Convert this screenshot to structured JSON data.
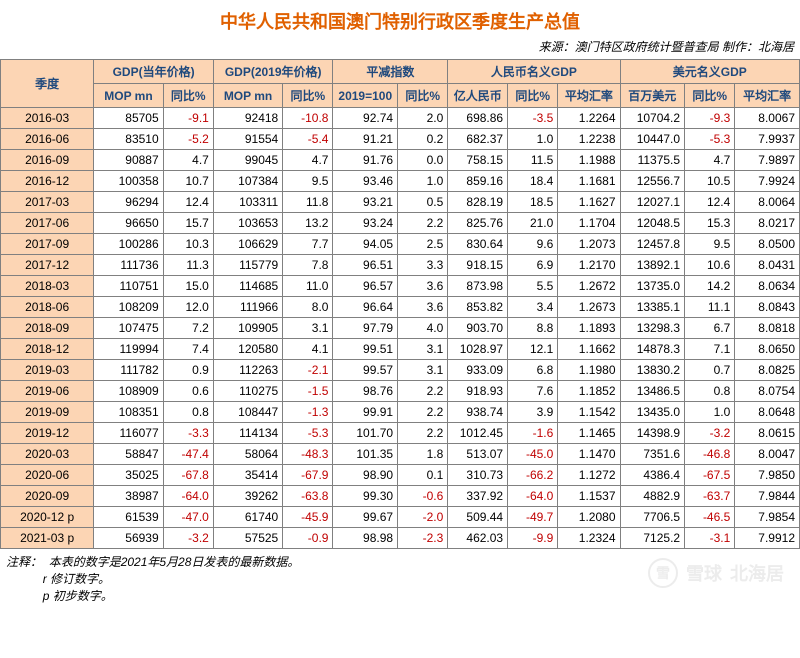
{
  "title": "中华人民共和国澳门特别行政区季度生产总值",
  "title_color": "#e06000",
  "title_fontsize": 18,
  "source": "来源：澳门特区政府统计暨普查局  制作：北海居",
  "source_fontsize": 12,
  "border_color": "#808080",
  "header_bg": "#fcd5b4",
  "header_text_color": "#1f497d",
  "header_fontsize": 12,
  "body_fontsize": 12,
  "body_text_color": "#000000",
  "negative_color": "#c00000",
  "period_bg": "#fcd5b4",
  "col_widths": [
    "78",
    "58",
    "42",
    "58",
    "42",
    "54",
    "42",
    "50",
    "42",
    "52",
    "54",
    "42",
    "54"
  ],
  "groups": [
    {
      "label": "季度",
      "span": 1,
      "rowspan": 2
    },
    {
      "label": "GDP(当年价格)",
      "span": 2
    },
    {
      "label": "GDP(2019年价格)",
      "span": 2
    },
    {
      "label": "平减指数",
      "span": 2
    },
    {
      "label": "人民币名义GDP",
      "span": 3
    },
    {
      "label": "美元名义GDP",
      "span": 3
    }
  ],
  "subheaders": [
    "MOP mn",
    "同比%",
    "MOP mn",
    "同比%",
    "2019=100",
    "同比%",
    "亿人民币",
    "同比%",
    "平均汇率",
    "百万美元",
    "同比%",
    "平均汇率"
  ],
  "rows": [
    {
      "p": "2016-03",
      "v": [
        "85705",
        "-9.1",
        "92418",
        "-10.8",
        "92.74",
        "2.0",
        "698.86",
        "-3.5",
        "1.2264",
        "10704.2",
        "-9.3",
        "8.0067"
      ]
    },
    {
      "p": "2016-06",
      "v": [
        "83510",
        "-5.2",
        "91554",
        "-5.4",
        "91.21",
        "0.2",
        "682.37",
        "1.0",
        "1.2238",
        "10447.0",
        "-5.3",
        "7.9937"
      ]
    },
    {
      "p": "2016-09",
      "v": [
        "90887",
        "4.7",
        "99045",
        "4.7",
        "91.76",
        "0.0",
        "758.15",
        "11.5",
        "1.1988",
        "11375.5",
        "4.7",
        "7.9897"
      ]
    },
    {
      "p": "2016-12",
      "v": [
        "100358",
        "10.7",
        "107384",
        "9.5",
        "93.46",
        "1.0",
        "859.16",
        "18.4",
        "1.1681",
        "12556.7",
        "10.5",
        "7.9924"
      ]
    },
    {
      "p": "2017-03",
      "v": [
        "96294",
        "12.4",
        "103311",
        "11.8",
        "93.21",
        "0.5",
        "828.19",
        "18.5",
        "1.1627",
        "12027.1",
        "12.4",
        "8.0064"
      ]
    },
    {
      "p": "2017-06",
      "v": [
        "96650",
        "15.7",
        "103653",
        "13.2",
        "93.24",
        "2.2",
        "825.76",
        "21.0",
        "1.1704",
        "12048.5",
        "15.3",
        "8.0217"
      ]
    },
    {
      "p": "2017-09",
      "v": [
        "100286",
        "10.3",
        "106629",
        "7.7",
        "94.05",
        "2.5",
        "830.64",
        "9.6",
        "1.2073",
        "12457.8",
        "9.5",
        "8.0500"
      ]
    },
    {
      "p": "2017-12",
      "v": [
        "111736",
        "11.3",
        "115779",
        "7.8",
        "96.51",
        "3.3",
        "918.15",
        "6.9",
        "1.2170",
        "13892.1",
        "10.6",
        "8.0431"
      ]
    },
    {
      "p": "2018-03",
      "v": [
        "110751",
        "15.0",
        "114685",
        "11.0",
        "96.57",
        "3.6",
        "873.98",
        "5.5",
        "1.2672",
        "13735.0",
        "14.2",
        "8.0634"
      ]
    },
    {
      "p": "2018-06",
      "v": [
        "108209",
        "12.0",
        "111966",
        "8.0",
        "96.64",
        "3.6",
        "853.82",
        "3.4",
        "1.2673",
        "13385.1",
        "11.1",
        "8.0843"
      ]
    },
    {
      "p": "2018-09",
      "v": [
        "107475",
        "7.2",
        "109905",
        "3.1",
        "97.79",
        "4.0",
        "903.70",
        "8.8",
        "1.1893",
        "13298.3",
        "6.7",
        "8.0818"
      ]
    },
    {
      "p": "2018-12",
      "v": [
        "119994",
        "7.4",
        "120580",
        "4.1",
        "99.51",
        "3.1",
        "1028.97",
        "12.1",
        "1.1662",
        "14878.3",
        "7.1",
        "8.0650"
      ]
    },
    {
      "p": "2019-03",
      "v": [
        "111782",
        "0.9",
        "112263",
        "-2.1",
        "99.57",
        "3.1",
        "933.09",
        "6.8",
        "1.1980",
        "13830.2",
        "0.7",
        "8.0825"
      ]
    },
    {
      "p": "2019-06",
      "v": [
        "108909",
        "0.6",
        "110275",
        "-1.5",
        "98.76",
        "2.2",
        "918.93",
        "7.6",
        "1.1852",
        "13486.5",
        "0.8",
        "8.0754"
      ]
    },
    {
      "p": "2019-09",
      "v": [
        "108351",
        "0.8",
        "108447",
        "-1.3",
        "99.91",
        "2.2",
        "938.74",
        "3.9",
        "1.1542",
        "13435.0",
        "1.0",
        "8.0648"
      ]
    },
    {
      "p": "2019-12",
      "v": [
        "116077",
        "-3.3",
        "114134",
        "-5.3",
        "101.70",
        "2.2",
        "1012.45",
        "-1.6",
        "1.1465",
        "14398.9",
        "-3.2",
        "8.0615"
      ]
    },
    {
      "p": "2020-03",
      "v": [
        "58847",
        "-47.4",
        "58064",
        "-48.3",
        "101.35",
        "1.8",
        "513.07",
        "-45.0",
        "1.1470",
        "7351.6",
        "-46.8",
        "8.0047"
      ]
    },
    {
      "p": "2020-06",
      "v": [
        "35025",
        "-67.8",
        "35414",
        "-67.9",
        "98.90",
        "0.1",
        "310.73",
        "-66.2",
        "1.1272",
        "4386.4",
        "-67.5",
        "7.9850"
      ]
    },
    {
      "p": "2020-09",
      "v": [
        "38987",
        "-64.0",
        "39262",
        "-63.8",
        "99.30",
        "-0.6",
        "337.92",
        "-64.0",
        "1.1537",
        "4882.9",
        "-63.7",
        "7.9844"
      ]
    },
    {
      "p": "2020-12 p",
      "v": [
        "61539",
        "-47.0",
        "61740",
        "-45.9",
        "99.67",
        "-2.0",
        "509.44",
        "-49.7",
        "1.2080",
        "7706.5",
        "-46.5",
        "7.9854"
      ]
    },
    {
      "p": "2021-03 p",
      "v": [
        "56939",
        "-3.2",
        "57525",
        "-0.9",
        "98.98",
        "-2.3",
        "462.03",
        "-9.9",
        "1.2324",
        "7125.2",
        "-3.1",
        "7.9912"
      ]
    }
  ],
  "notes_label": "注释：",
  "notes": [
    "本表的数字是2021年5月28日发表的最新数据。",
    "r 修订数字。",
    "p 初步数字。"
  ],
  "watermark_logo": "雪",
  "watermark_text1": "雪球",
  "watermark_text2": "北海居",
  "watermark_fontsize": 18
}
